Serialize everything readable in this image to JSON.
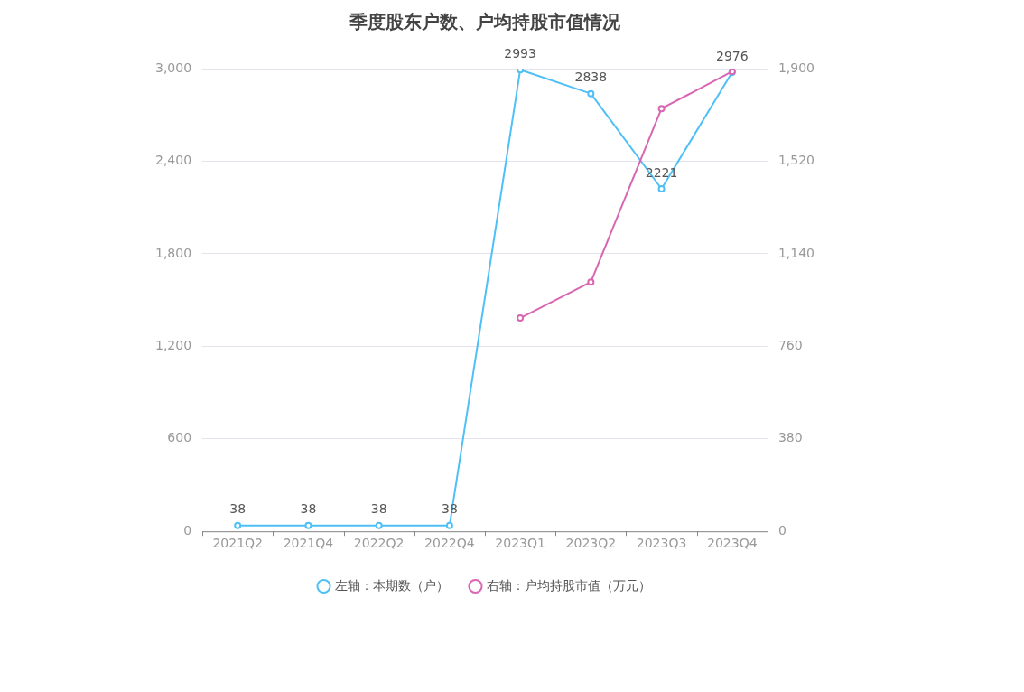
{
  "chart_data": {
    "type": "line",
    "title": "季度股东户数、户均持股市值情况",
    "categories": [
      "2021Q2",
      "2021Q4",
      "2022Q2",
      "2022Q4",
      "2023Q1",
      "2023Q2",
      "2023Q3",
      "2023Q4"
    ],
    "series": [
      {
        "name": "左轴：本期数（户）",
        "color": "#4fc0f5",
        "values": [
          38,
          38,
          38,
          38,
          2993,
          2838,
          2221,
          2976
        ],
        "value_labels": [
          "38",
          "38",
          "38",
          "38",
          "2993",
          "2838",
          "2221",
          "2976"
        ]
      },
      {
        "name": "右轴：户均持股市值（万元）",
        "color": "#d966b2",
        "axis": "y2",
        "values": [
          null,
          null,
          null,
          null,
          876,
          1024,
          1736,
          1888
        ]
      }
    ],
    "ylim": [
      0,
      3000
    ],
    "yticks": [
      0,
      600,
      {
        "value": 1200,
        "label": "1,200"
      },
      {
        "value": 1800,
        "label": "1,800"
      },
      {
        "value": 2400,
        "label": "2,400"
      },
      {
        "value": 3000,
        "label": "3,000"
      }
    ],
    "y2lim": [
      0,
      1900
    ],
    "y2ticks": [
      0,
      380,
      760,
      {
        "value": 1140,
        "label": "1,140"
      },
      {
        "value": 1520,
        "label": "1,520"
      },
      {
        "value": 1900,
        "label": "1,900"
      }
    ],
    "grid": "y",
    "legend": "bottom",
    "marker": "circle",
    "line_style": "solid"
  }
}
